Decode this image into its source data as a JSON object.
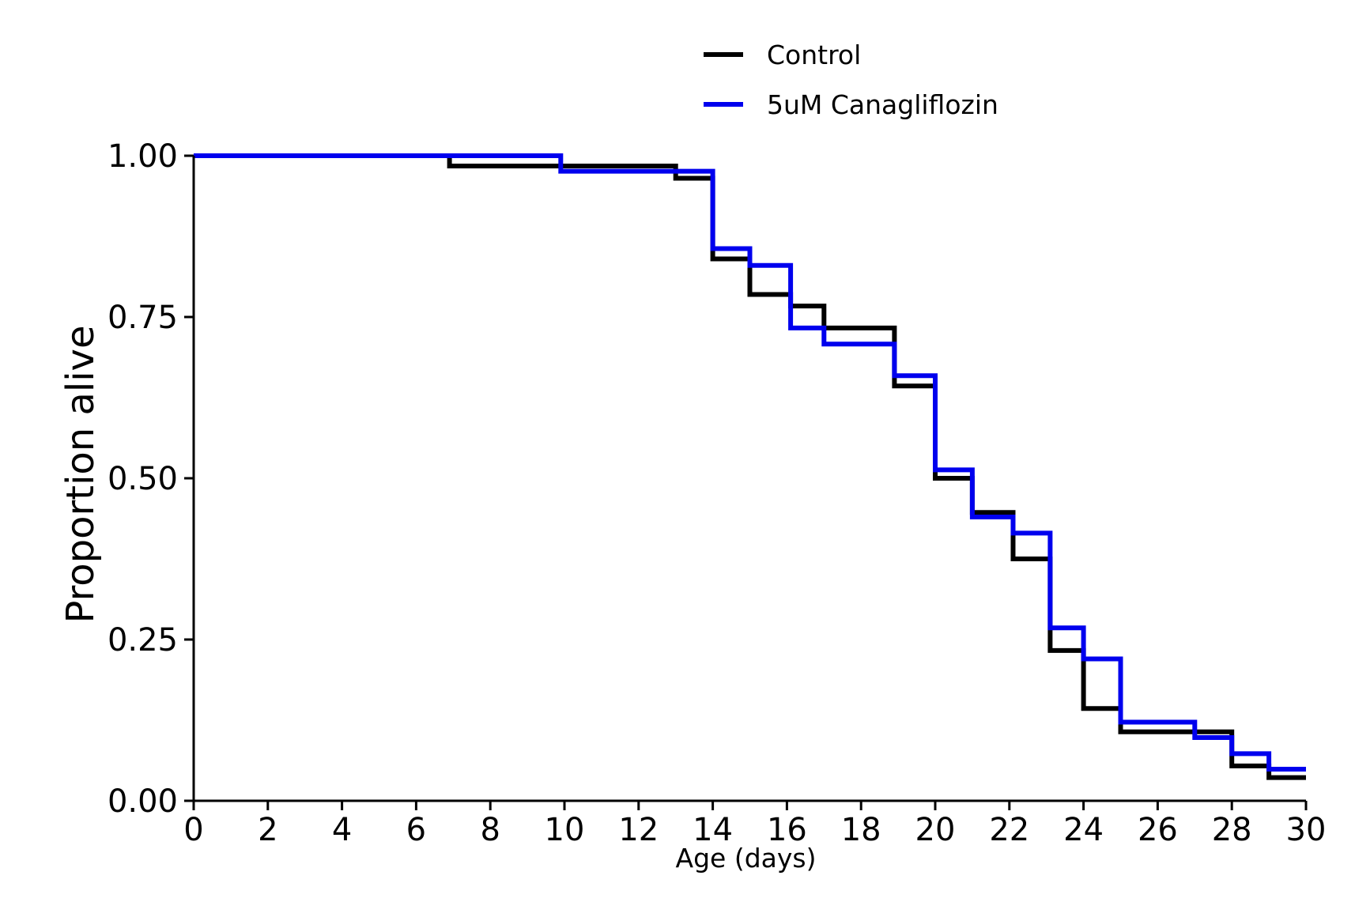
{
  "chart_data": {
    "type": "line",
    "step": true,
    "xlabel": "Age (days)",
    "ylabel": "Proportion alive",
    "xlim": [
      0,
      30
    ],
    "ylim": [
      0,
      1
    ],
    "x_ticks": [
      0,
      2,
      4,
      6,
      8,
      10,
      12,
      14,
      16,
      18,
      20,
      22,
      24,
      26,
      28,
      30
    ],
    "y_ticks": [
      0,
      0.25,
      0.5,
      0.75,
      1.0
    ],
    "x_tick_labels": [
      "0",
      "2",
      "4",
      "6",
      "8",
      "10",
      "12",
      "14",
      "16",
      "18",
      "20",
      "22",
      "24",
      "26",
      "28",
      "30"
    ],
    "y_tick_labels": [
      "0.00",
      "0.25",
      "0.50",
      "0.75",
      "1.00"
    ],
    "grid": false,
    "legend_position": "top-center",
    "series": [
      {
        "name": "Control",
        "color": "#000000",
        "x": [
          0,
          6.9,
          13.0,
          14.0,
          15.0,
          16.1,
          17.0,
          18.9,
          20.0,
          21.0,
          22.1,
          23.1,
          24.0,
          25.0,
          28.0,
          29.0,
          30.0
        ],
        "y": [
          1.0,
          0.984,
          0.965,
          0.84,
          0.785,
          0.767,
          0.733,
          0.643,
          0.5,
          0.447,
          0.375,
          0.233,
          0.143,
          0.107,
          0.054,
          0.036,
          0.036
        ]
      },
      {
        "name": "5uM Canagliflozin",
        "color": "#0000ee",
        "x": [
          0,
          9.9,
          14.0,
          15.0,
          16.1,
          17.0,
          18.9,
          20.0,
          21.0,
          22.1,
          23.1,
          24.0,
          25.0,
          27.0,
          28.0,
          29.0,
          30.0
        ],
        "y": [
          1.0,
          0.976,
          0.856,
          0.83,
          0.733,
          0.708,
          0.659,
          0.513,
          0.44,
          0.415,
          0.268,
          0.22,
          0.122,
          0.098,
          0.073,
          0.049,
          0.049
        ]
      }
    ]
  }
}
